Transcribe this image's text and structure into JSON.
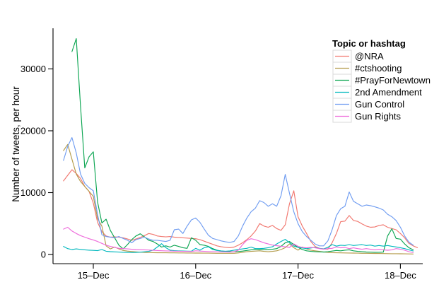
{
  "chart_data": {
    "type": "line",
    "title": "",
    "ylabel": "Number of tweets, per hour",
    "legend_title": "Topic or hashtag",
    "legend_position": "top-right",
    "grid": false,
    "background": "#ffffff",
    "axis_color": "#000000",
    "legend_swatch_border": "#d8d8d8",
    "x_unit": "hours, one point per hour, starting 14-Dec evening",
    "ylim": [
      0,
      35000
    ],
    "y_ticks": [
      {
        "label": "0",
        "value": 0
      },
      {
        "label": "10000",
        "value": 10000
      },
      {
        "label": "20000",
        "value": 20000
      },
      {
        "label": "30000",
        "value": 30000
      }
    ],
    "x_ticks": [
      {
        "label": "15–Dec",
        "hour": 7
      },
      {
        "label": "16–Dec",
        "hour": 31
      },
      {
        "label": "17–Dec",
        "hour": 55
      },
      {
        "label": "18–Dec",
        "hour": 79
      }
    ],
    "series": [
      {
        "name": "@NRA",
        "color": "#f1776f",
        "values": [
          11900,
          12800,
          13700,
          13100,
          12300,
          11000,
          10200,
          8300,
          5200,
          3700,
          3000,
          2800,
          2850,
          2800,
          2700,
          2500,
          2300,
          2500,
          2750,
          3050,
          3400,
          3250,
          3000,
          2900,
          2850,
          2900,
          2800,
          2750,
          2700,
          2650,
          2600,
          2550,
          2400,
          2150,
          1900,
          1650,
          1400,
          1250,
          1150,
          1100,
          1200,
          1500,
          1900,
          2400,
          3000,
          3800,
          5000,
          4600,
          4400,
          4700,
          4200,
          3900,
          4800,
          8200,
          10300,
          6100,
          4600,
          3400,
          2100,
          1300,
          1000,
          900,
          850,
          1900,
          3400,
          5300,
          5400,
          6300,
          5500,
          5350,
          4950,
          4600,
          4400,
          4450,
          4700,
          4800,
          4400,
          4200,
          4000,
          3400,
          2700,
          1800,
          1400,
          1100
        ]
      },
      {
        "name": "#ctshooting",
        "color": "#b39b4a",
        "values": [
          16800,
          17800,
          15400,
          13000,
          11800,
          11000,
          10200,
          9400,
          5800,
          4600,
          1400,
          900,
          1200,
          900,
          650,
          550,
          480,
          420,
          380,
          340,
          320,
          300,
          290,
          280,
          270,
          260,
          260,
          250,
          250,
          240,
          240,
          230,
          230,
          220,
          220,
          210,
          200,
          200,
          190,
          190,
          200,
          250,
          350,
          450,
          500,
          550,
          600,
          500,
          450,
          500,
          600,
          800,
          1100,
          1700,
          1100,
          700,
          1200,
          900,
          700,
          600,
          500,
          400,
          350,
          300,
          280,
          260,
          250,
          240,
          230,
          220,
          200,
          190,
          180,
          170,
          160,
          150,
          140,
          130,
          120,
          110,
          100,
          90,
          80
        ]
      },
      {
        "name": "#PrayForNewtown",
        "color": "#0ba551",
        "values": [
          null,
          null,
          32800,
          34900,
          24000,
          14000,
          15800,
          16600,
          8500,
          5100,
          5700,
          3900,
          2700,
          1500,
          900,
          1600,
          2400,
          3000,
          3350,
          2850,
          2300,
          2100,
          1700,
          1200,
          1400,
          1200,
          1500,
          1300,
          1100,
          1000,
          2700,
          2300,
          1600,
          1500,
          1300,
          950,
          700,
          550,
          480,
          450,
          440,
          480,
          550,
          650,
          760,
          850,
          800,
          780,
          800,
          850,
          950,
          1300,
          1900,
          2100,
          1600,
          1150,
          800,
          600,
          500,
          450,
          420,
          400,
          450,
          550,
          650,
          600,
          700,
          750,
          600,
          500,
          450,
          400,
          380,
          350,
          350,
          380,
          3000,
          4150,
          2600,
          2480,
          1700,
          1100,
          760
        ]
      },
      {
        "name": "2nd Amendment",
        "color": "#00b8be",
        "values": [
          1300,
          950,
          800,
          900,
          820,
          760,
          700,
          660,
          620,
          800,
          520,
          460,
          420,
          390,
          360,
          340,
          320,
          340,
          380,
          430,
          500,
          700,
          1200,
          1750,
          1100,
          700,
          620,
          580,
          560,
          540,
          520,
          1000,
          700,
          1100,
          1250,
          800,
          650,
          570,
          520,
          580,
          700,
          800,
          900,
          1000,
          1200,
          950,
          950,
          1000,
          1100,
          1250,
          1700,
          2100,
          2450,
          1900,
          1350,
          1150,
          1050,
          950,
          1050,
          1150,
          1000,
          900,
          1150,
          1600,
          1350,
          1500,
          1450,
          1600,
          1450,
          1520,
          1600,
          1450,
          1520,
          1350,
          1450,
          1350,
          1450,
          1330,
          1220,
          1100,
          950,
          760,
          570
        ]
      },
      {
        "name": "Gun Control",
        "color": "#6f9cf1",
        "values": [
          15200,
          17500,
          18900,
          16400,
          13000,
          11500,
          10800,
          10300,
          6500,
          3200,
          2900,
          2800,
          2700,
          2900,
          2600,
          2300,
          1900,
          2400,
          2600,
          2800,
          2500,
          2300,
          2300,
          2200,
          2100,
          2300,
          4000,
          4100,
          3400,
          4600,
          5600,
          5900,
          5200,
          4100,
          3100,
          2600,
          2400,
          2200,
          2050,
          1950,
          2100,
          3000,
          4600,
          5900,
          6900,
          7500,
          8700,
          8400,
          7800,
          8200,
          7800,
          9500,
          12950,
          9900,
          6900,
          5000,
          3700,
          2900,
          2300,
          1700,
          1400,
          1400,
          2200,
          4000,
          6300,
          7400,
          7800,
          10100,
          8600,
          8200,
          7800,
          8000,
          7900,
          7700,
          7500,
          7200,
          6500,
          6100,
          5500,
          4400,
          3000,
          2000,
          1500
        ]
      },
      {
        "name": "Gun Rights",
        "color": "#ee6bdb",
        "values": [
          4100,
          4400,
          3800,
          3400,
          3050,
          2800,
          2550,
          2350,
          2100,
          1800,
          1500,
          1300,
          1150,
          1000,
          950,
          900,
          850,
          800,
          780,
          750,
          720,
          680,
          640,
          610,
          580,
          560,
          540,
          520,
          500,
          490,
          480,
          600,
          550,
          500,
          470,
          450,
          430,
          420,
          410,
          400,
          450,
          700,
          1600,
          2300,
          2550,
          2400,
          2150,
          1900,
          1700,
          1520,
          1430,
          1330,
          1240,
          1140,
          1710,
          1330,
          1140,
          1070,
          1140,
          1070,
          950,
          860,
          950,
          1000,
          1220,
          1070,
          1140,
          950,
          1070,
          950,
          840,
          950,
          840,
          760,
          840,
          760,
          690,
          760,
          950,
          860,
          690,
          460,
          310
        ]
      }
    ]
  }
}
